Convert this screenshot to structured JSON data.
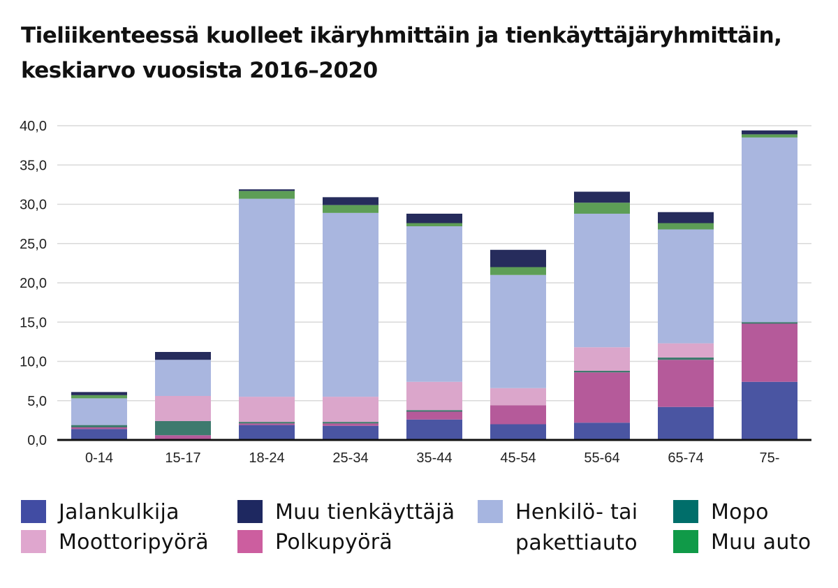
{
  "chart_data": {
    "type": "bar",
    "stacked": true,
    "title": "Tieliikenteessä kuolleet ikäryhmittäin ja tienkäyttäjäryhmittäin, keskiarvo vuosista 2016–2020",
    "categories": [
      "0-14",
      "15-17",
      "18-24",
      "25-34",
      "35-44",
      "45-54",
      "55-64",
      "65-74",
      "75-"
    ],
    "y_tick_labels": [
      "0,0",
      "5,0",
      "10,0",
      "15,0",
      "20,0",
      "25,0",
      "30,0",
      "35,0",
      "40,0"
    ],
    "ylim": [
      0,
      40
    ],
    "grid": true,
    "legend_position": "bottom",
    "series": [
      {
        "name": "Jalankulkija",
        "color": "#4a55a2",
        "values": [
          1.4,
          0.0,
          1.9,
          1.8,
          2.6,
          2.0,
          2.2,
          4.2,
          7.4
        ]
      },
      {
        "name": "Polkupyörä",
        "color": "#b55a9a",
        "values": [
          0.2,
          0.6,
          0.2,
          0.3,
          1.0,
          2.4,
          6.4,
          6.0,
          7.4
        ]
      },
      {
        "name": "Mopo",
        "color": "#3e7a6e",
        "values": [
          0.3,
          1.8,
          0.2,
          0.2,
          0.2,
          0.0,
          0.2,
          0.3,
          0.2
        ]
      },
      {
        "name": "Moottoripyörä",
        "color": "#dba6cb",
        "values": [
          0.0,
          3.2,
          3.2,
          3.2,
          3.6,
          2.2,
          3.0,
          1.8,
          0.0
        ]
      },
      {
        "name": "Henkilö- tai pakettiauto",
        "color": "#a9b6df",
        "values": [
          3.4,
          4.6,
          25.2,
          23.4,
          19.8,
          14.4,
          17.0,
          14.5,
          23.5
        ]
      },
      {
        "name": "Muu auto",
        "color": "#5d9e56",
        "values": [
          0.4,
          0.0,
          1.0,
          1.0,
          0.4,
          1.0,
          1.4,
          0.8,
          0.4
        ]
      },
      {
        "name": "Muu tienkäyttäjä",
        "color": "#262c5c",
        "values": [
          0.4,
          1.0,
          0.2,
          1.0,
          1.2,
          2.2,
          1.4,
          1.4,
          0.5
        ]
      }
    ]
  },
  "legend": [
    {
      "label": "Jalankulkija",
      "color": "#414ca3",
      "col": 0,
      "row": 0
    },
    {
      "label": "Moottoripyörä",
      "color": "#dfa6ce",
      "col": 0,
      "row": 1
    },
    {
      "label": "Muu tienkäyttäjä",
      "color": "#1e2860",
      "col": 1,
      "row": 0
    },
    {
      "label": "Polkupyörä",
      "color": "#cc5e9f",
      "col": 1,
      "row": 1
    },
    {
      "label": "Henkilö- tai pakettiauto",
      "color": "#a6b5e0",
      "col": 2,
      "row": 0
    },
    {
      "label": "Mopo",
      "color": "#006e6a",
      "col": 3,
      "row": 0
    },
    {
      "label": "Muu auto",
      "color": "#109a48",
      "col": 3,
      "row": 1
    }
  ]
}
